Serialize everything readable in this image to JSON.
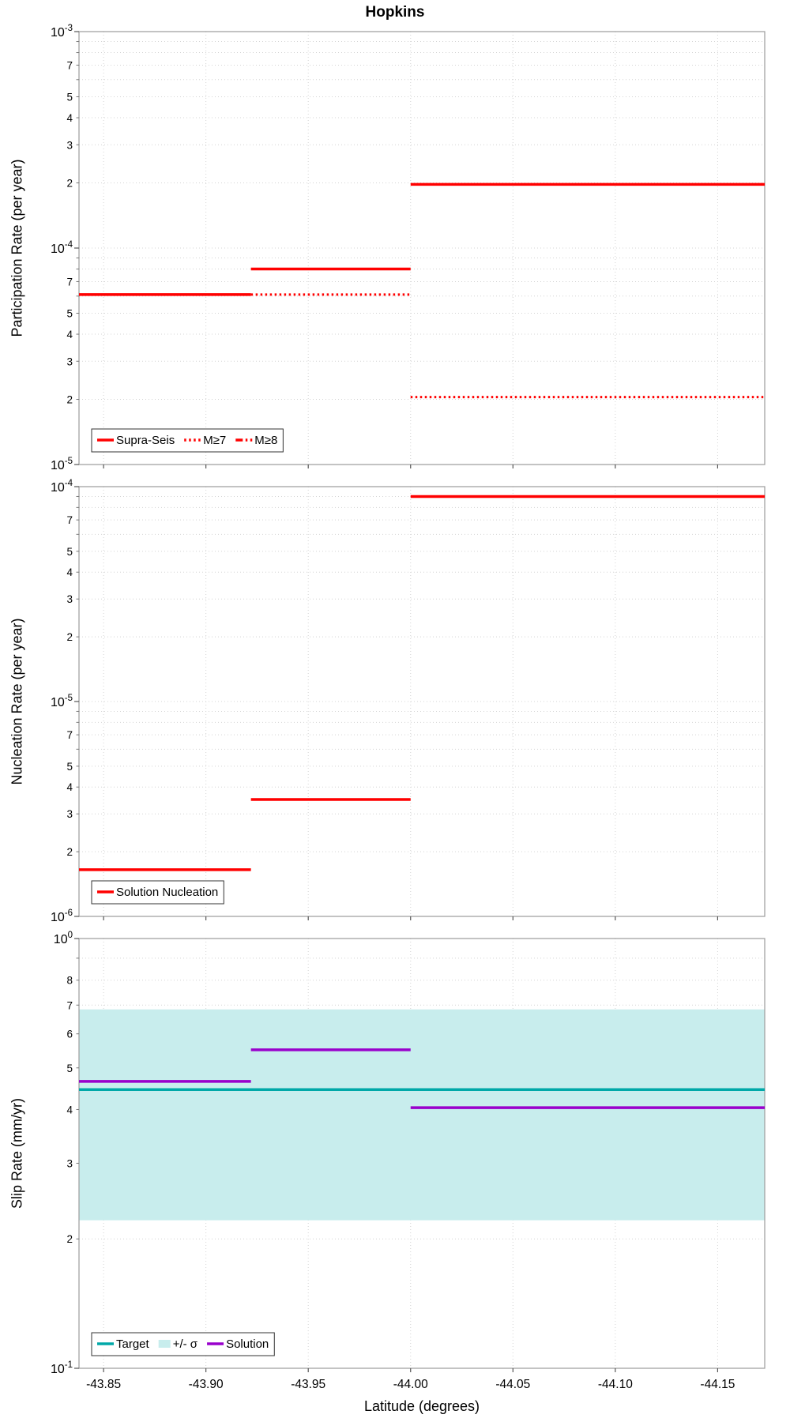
{
  "chart_data": {
    "type": "line",
    "title": "Hopkins",
    "xlabel": "Latitude (degrees)",
    "xlim": [
      -43.838,
      -44.173
    ],
    "xticks": [
      -43.85,
      -43.9,
      -43.95,
      -44.0,
      -44.05,
      -44.1,
      -44.15
    ],
    "grid": true,
    "colors": {
      "red": "#FF0000",
      "teal": "#00A8A8",
      "band_cyan": "#C8EDED",
      "purple": "#9900CC"
    },
    "panels": [
      {
        "ylabel": "Participation Rate (per year)",
        "ylim": [
          1e-05,
          0.001
        ],
        "minor_labeled": [
          7,
          5,
          4,
          3,
          2
        ],
        "legend_position": "bottom-left",
        "series": [
          {
            "name": "Supra-Seis",
            "color": "#FF0000",
            "style": "solid",
            "width": 3.5,
            "segments": [
              {
                "x": [
                  -43.838,
                  -43.922
                ],
                "y": 6.1e-05
              },
              {
                "x": [
                  -43.922,
                  -44.0
                ],
                "y": 8e-05
              },
              {
                "x": [
                  -44.0,
                  -44.173
                ],
                "y": 0.000197
              }
            ]
          },
          {
            "name": "M≥7",
            "color": "#FF0000",
            "style": "dotted",
            "width": 3,
            "segments": [
              {
                "x": [
                  -43.922,
                  -44.0
                ],
                "y": 6.1e-05
              },
              {
                "x": [
                  -44.0,
                  -44.173
                ],
                "y": 2.05e-05
              }
            ]
          },
          {
            "name": "M≥8",
            "color": "#FF0000",
            "style": "dashdot",
            "width": 3,
            "segments": []
          }
        ]
      },
      {
        "ylabel": "Nucleation Rate (per year)",
        "ylim": [
          1e-06,
          0.0001
        ],
        "minor_labeled": [
          7,
          5,
          4,
          3,
          2
        ],
        "legend_position": "bottom-left",
        "series": [
          {
            "name": "Solution Nucleation",
            "color": "#FF0000",
            "style": "solid",
            "width": 3.5,
            "segments": [
              {
                "x": [
                  -43.838,
                  -43.922
                ],
                "y": 1.65e-06
              },
              {
                "x": [
                  -43.922,
                  -44.0
                ],
                "y": 3.5e-06
              },
              {
                "x": [
                  -44.0,
                  -44.173
                ],
                "y": 9e-05
              }
            ]
          }
        ]
      },
      {
        "ylabel": "Slip Rate (mm/yr)",
        "ylim": [
          0.1,
          1.0
        ],
        "minor_labeled": [
          8,
          7,
          6,
          5,
          4,
          3,
          2
        ],
        "legend_position": "bottom-left",
        "series": [
          {
            "name": "Target",
            "color": "#00A8A8",
            "style": "solid",
            "width": 3.5,
            "segments": [
              {
                "x": [
                  -43.838,
                  -44.173
                ],
                "y": 0.445
              }
            ]
          },
          {
            "name": "+/- σ",
            "type": "band",
            "color": "#C8EDED",
            "x": [
              -43.838,
              -44.173
            ],
            "lo": 0.221,
            "hi": 0.684
          },
          {
            "name": "Solution",
            "color": "#9900CC",
            "style": "solid",
            "width": 3.5,
            "segments": [
              {
                "x": [
                  -43.838,
                  -43.922
                ],
                "y": 0.465
              },
              {
                "x": [
                  -43.922,
                  -44.0
                ],
                "y": 0.551
              },
              {
                "x": [
                  -44.0,
                  -44.173
                ],
                "y": 0.404
              }
            ]
          }
        ]
      }
    ]
  }
}
